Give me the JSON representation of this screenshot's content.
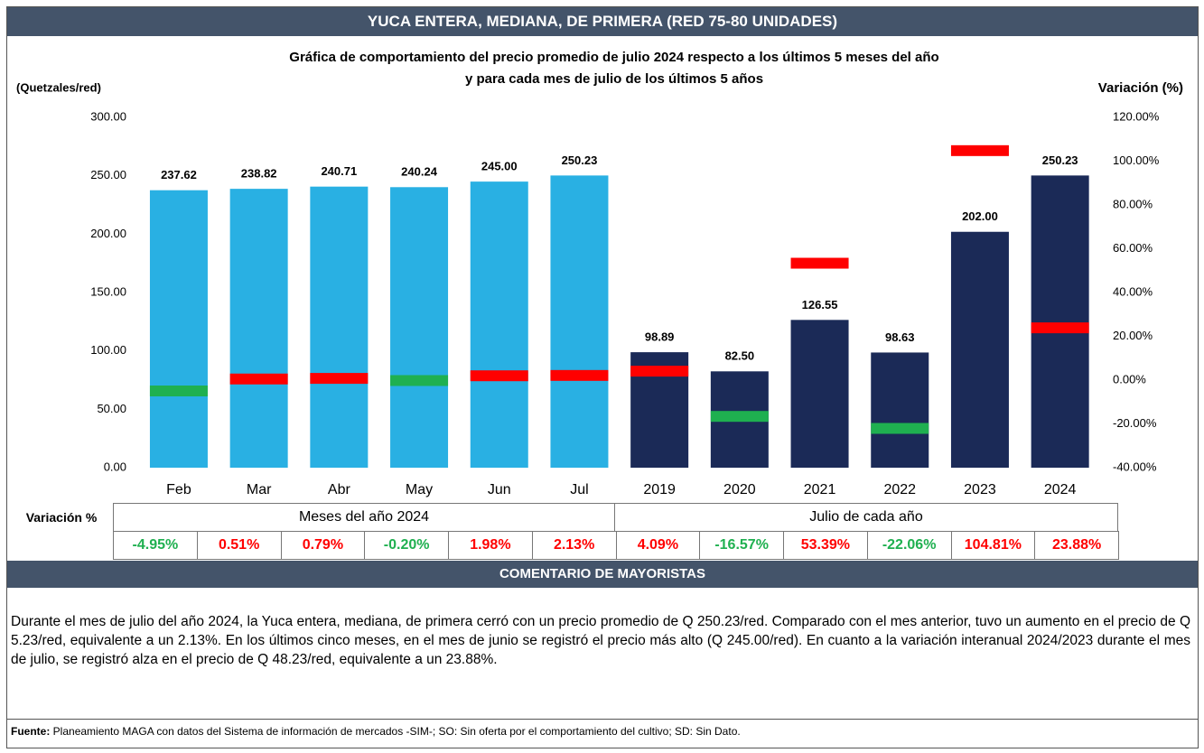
{
  "header": {
    "title": "YUCA ENTERA, MEDIANA, DE PRIMERA (RED 75-80 UNIDADES)"
  },
  "chart_data": {
    "type": "bar",
    "title_lines": [
      "Gráfica de comportamiento del precio promedio de julio 2024 respecto a los últimos 5 meses del año",
      "y para cada mes de julio de los últimos 5 años"
    ],
    "y_label": "(Quetzales/red)",
    "y2_label": "Variación (%)",
    "categories": [
      "Feb",
      "Mar",
      "Abr",
      "May",
      "Jun",
      "Jul",
      "2019",
      "2020",
      "2021",
      "2022",
      "2023",
      "2024"
    ],
    "series": [
      {
        "values": [
          237.62,
          238.82,
          240.71,
          240.24,
          245,
          250.23,
          98.89,
          82.5,
          126.55,
          98.63,
          202,
          250.23
        ],
        "value_labels": [
          "237.62",
          "238.82",
          "240.71",
          "240.24",
          "245.00",
          "250.23",
          "98.89",
          "82.50",
          "126.55",
          "98.63",
          "202.00",
          "250.23"
        ],
        "colors": [
          "#29b0e3",
          "#29b0e3",
          "#29b0e3",
          "#29b0e3",
          "#29b0e3",
          "#29b0e3",
          "#1b2a57",
          "#1b2a57",
          "#1b2a57",
          "#1b2a57",
          "#1b2a57",
          "#1b2a57"
        ]
      },
      {
        "axis": "y2",
        "values": [
          -4.95,
          0.51,
          0.79,
          -0.2,
          1.98,
          2.13,
          4.09,
          -16.57,
          53.39,
          -22.06,
          104.81,
          23.88
        ],
        "value_labels": [
          "-4.95%",
          "0.51%",
          "0.79%",
          "-0.20%",
          "1.98%",
          "2.13%",
          "4.09%",
          "-16.57%",
          "53.39%",
          "-22.06%",
          "104.81%",
          "23.88%"
        ],
        "colors": [
          "#1fb050",
          "#ff0000",
          "#ff0000",
          "#1fb050",
          "#ff0000",
          "#ff0000",
          "#ff0000",
          "#1fb050",
          "#ff0000",
          "#1fb050",
          "#ff0000",
          "#ff0000"
        ]
      }
    ],
    "ylim": [
      0,
      300
    ],
    "yticks": [
      {
        "value": 0,
        "label": "0.00"
      },
      {
        "value": 50,
        "label": "50.00"
      },
      {
        "value": 100,
        "label": "100.00"
      },
      {
        "value": 150,
        "label": "150.00"
      },
      {
        "value": 200,
        "label": "200.00"
      },
      {
        "value": 250,
        "label": "250.00"
      },
      {
        "value": 300,
        "label": "300.00"
      }
    ],
    "y2lim": [
      -40,
      120
    ],
    "y2ticks": [
      {
        "value": -40,
        "label": "-40.00%"
      },
      {
        "value": -20,
        "label": "-20.00%"
      },
      {
        "value": 0,
        "label": "0.00%"
      },
      {
        "value": 20,
        "label": "20.00%"
      },
      {
        "value": 40,
        "label": "40.00%"
      },
      {
        "value": 60,
        "label": "60.00%"
      },
      {
        "value": 80,
        "label": "80.00%"
      },
      {
        "value": 100,
        "label": "100.00%"
      },
      {
        "value": 120,
        "label": "120.00%"
      }
    ],
    "grid": false
  },
  "variation_table": {
    "label": "Variación %",
    "groups": [
      "Meses del año  2024",
      "Julio de cada año"
    ]
  },
  "comment": {
    "title": "COMENTARIO DE MAYORISTAS",
    "text": "Durante el mes de julio del año 2024, la Yuca entera, mediana, de primera cerró con un precio promedio de Q 250.23/red. Comparado con el mes anterior, tuvo un aumento en el precio de Q 5.23/red, equivalente a un 2.13%. En los últimos cinco meses, en el mes de junio se registró el precio más alto (Q 245.00/red). En cuanto a la variación interanual 2024/2023 durante el mes de julio, se registró alza en el precio de Q 48.23/red, equivalente a un 23.88%."
  },
  "footer": {
    "label": "Fuente:",
    "text": " Planeamiento MAGA con datos del Sistema de información de mercados -SIM-; SO: Sin oferta por el comportamiento del cultivo; SD: Sin Dato."
  }
}
